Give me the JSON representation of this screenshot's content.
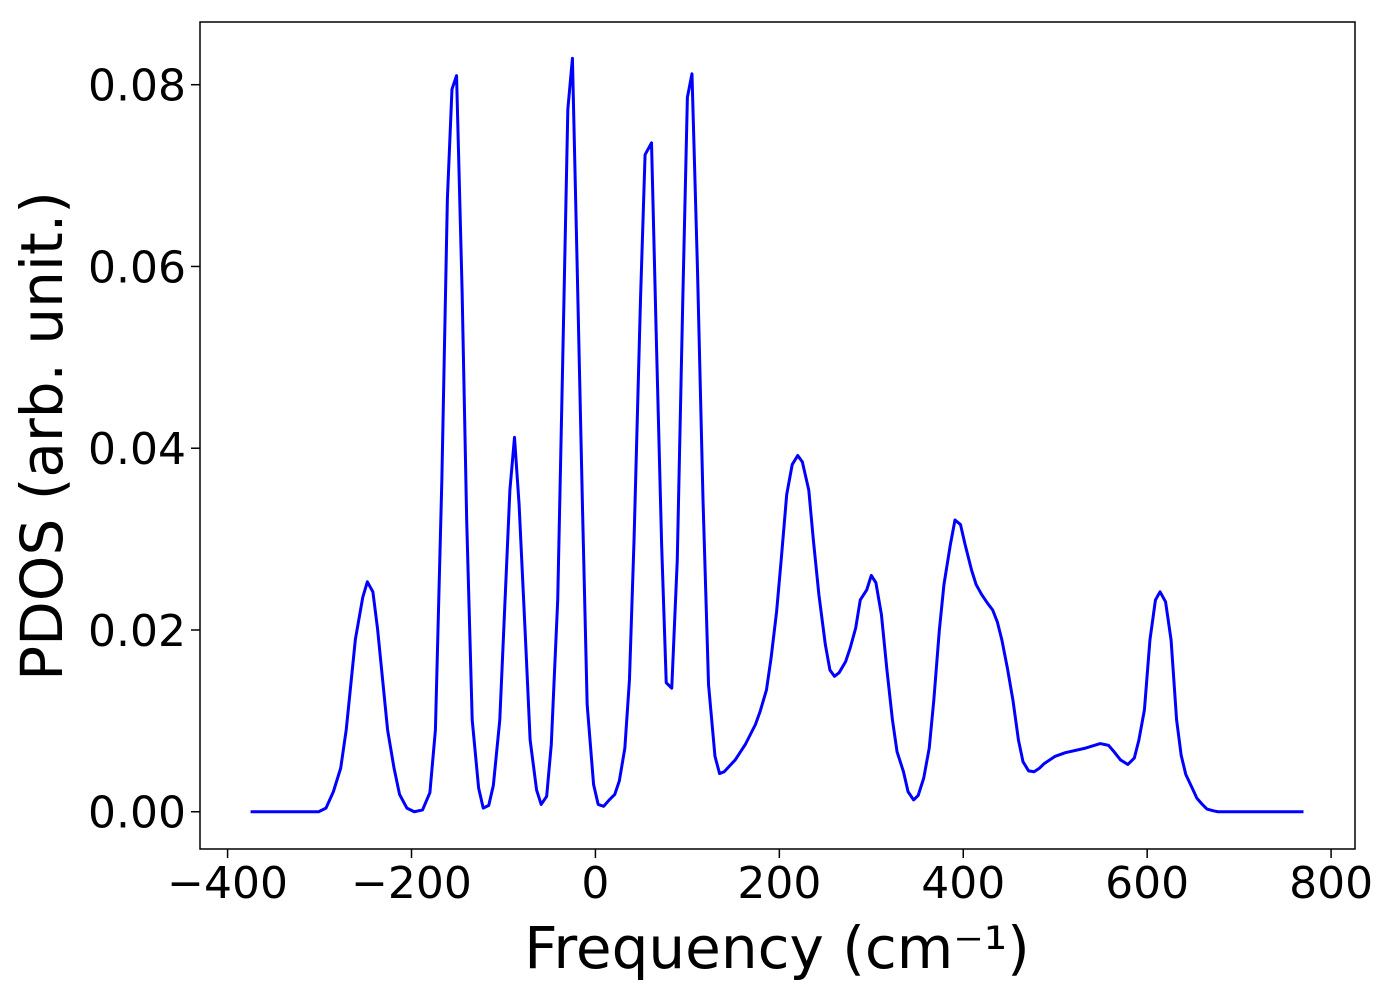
{
  "chart_data": {
    "type": "line",
    "xlabel": "Frequency (cm⁻¹)",
    "ylabel": "PDOS (arb. unit.)",
    "xlim": [
      -430,
      826
    ],
    "ylim": [
      -0.0041,
      0.0869
    ],
    "xticks": [
      {
        "value": -400,
        "label": "−400"
      },
      {
        "value": -200,
        "label": "−200"
      },
      0,
      200,
      400,
      600,
      800
    ],
    "yticks": [
      {
        "value": 0,
        "label": "0.00"
      },
      {
        "value": 0.02,
        "label": "0.02"
      },
      {
        "value": 0.04,
        "label": "0.04"
      },
      {
        "value": 0.06,
        "label": "0.06"
      },
      {
        "value": 0.08,
        "label": "0.08"
      }
    ],
    "grid": false,
    "x": [
      -375,
      -301,
      -293,
      -285,
      -277,
      -271,
      -261,
      -253,
      -248,
      -242,
      -237,
      -226,
      -219,
      -213,
      -205,
      -197,
      -188,
      -180,
      -174,
      -167,
      -161,
      -156,
      -151,
      -145,
      -140,
      -134,
      -127,
      -122,
      -116,
      -111,
      -104,
      -93,
      -88,
      -83,
      -76,
      -71,
      -64,
      -59,
      -53,
      -48,
      -41,
      -36,
      -30,
      -25,
      -20,
      -14,
      -9,
      -2,
      3,
      9,
      15,
      21,
      26,
      32,
      37,
      42,
      49,
      54,
      61,
      66,
      72,
      77,
      83,
      89,
      95,
      100,
      105,
      111,
      117,
      123,
      130,
      135,
      140,
      152,
      163,
      174,
      179,
      186,
      191,
      197,
      202,
      208,
      214,
      220,
      225,
      232,
      237,
      243,
      250,
      255,
      260,
      265,
      272,
      277,
      283,
      288,
      295,
      300,
      305,
      311,
      317,
      323,
      328,
      335,
      340,
      346,
      351,
      357,
      363,
      368,
      374,
      379,
      386,
      391,
      397,
      402,
      409,
      414,
      420,
      426,
      432,
      437,
      442,
      448,
      454,
      460,
      465,
      471,
      477,
      483,
      488,
      500,
      511,
      533,
      549,
      558,
      564,
      571,
      579,
      586,
      591,
      597,
      603,
      609,
      614,
      620,
      626,
      632,
      637,
      642,
      649,
      654,
      660,
      665,
      672,
      677,
      770
    ],
    "series": [
      {
        "name": "PDOS",
        "color": "#0000ff",
        "values": [
          0,
          0,
          0.0004,
          0.0022,
          0.0048,
          0.009,
          0.019,
          0.0236,
          0.0253,
          0.0242,
          0.0202,
          0.009,
          0.0048,
          0.0019,
          0.0004,
          0,
          0.0002,
          0.0021,
          0.009,
          0.0365,
          0.0674,
          0.0795,
          0.081,
          0.0574,
          0.0321,
          0.0101,
          0.0026,
          0.0004,
          0.0007,
          0.0029,
          0.0101,
          0.0354,
          0.0412,
          0.0338,
          0.0189,
          0.0079,
          0.0024,
          0.0008,
          0.0017,
          0.0074,
          0.0233,
          0.0475,
          0.0773,
          0.0829,
          0.0607,
          0.0332,
          0.0118,
          0.003,
          0.0008,
          0.0006,
          0.0013,
          0.0019,
          0.0034,
          0.007,
          0.0145,
          0.0299,
          0.0563,
          0.0723,
          0.0736,
          0.053,
          0.0294,
          0.0142,
          0.0136,
          0.0277,
          0.0563,
          0.0786,
          0.0812,
          0.0596,
          0.0343,
          0.014,
          0.0061,
          0.0042,
          0.0044,
          0.0057,
          0.0074,
          0.0096,
          0.011,
          0.0134,
          0.0169,
          0.022,
          0.0277,
          0.0349,
          0.0382,
          0.0392,
          0.0385,
          0.0354,
          0.0299,
          0.0239,
          0.0184,
          0.0156,
          0.0149,
          0.0153,
          0.0165,
          0.018,
          0.0202,
          0.0233,
          0.0244,
          0.026,
          0.0252,
          0.0217,
          0.0156,
          0.0101,
          0.0066,
          0.0044,
          0.0022,
          0.0013,
          0.0018,
          0.0037,
          0.007,
          0.0123,
          0.02,
          0.025,
          0.0294,
          0.0321,
          0.0316,
          0.0294,
          0.0266,
          0.025,
          0.0239,
          0.023,
          0.0222,
          0.0209,
          0.0189,
          0.0158,
          0.0123,
          0.0079,
          0.0055,
          0.0045,
          0.0044,
          0.0048,
          0.0053,
          0.0061,
          0.0065,
          0.007,
          0.0075,
          0.0073,
          0.0066,
          0.0057,
          0.0052,
          0.0059,
          0.0079,
          0.0112,
          0.0189,
          0.0233,
          0.0242,
          0.0231,
          0.0189,
          0.0101,
          0.0062,
          0.0041,
          0.0026,
          0.0015,
          0.0008,
          0.0003,
          0.0001,
          0,
          0
        ]
      }
    ]
  }
}
